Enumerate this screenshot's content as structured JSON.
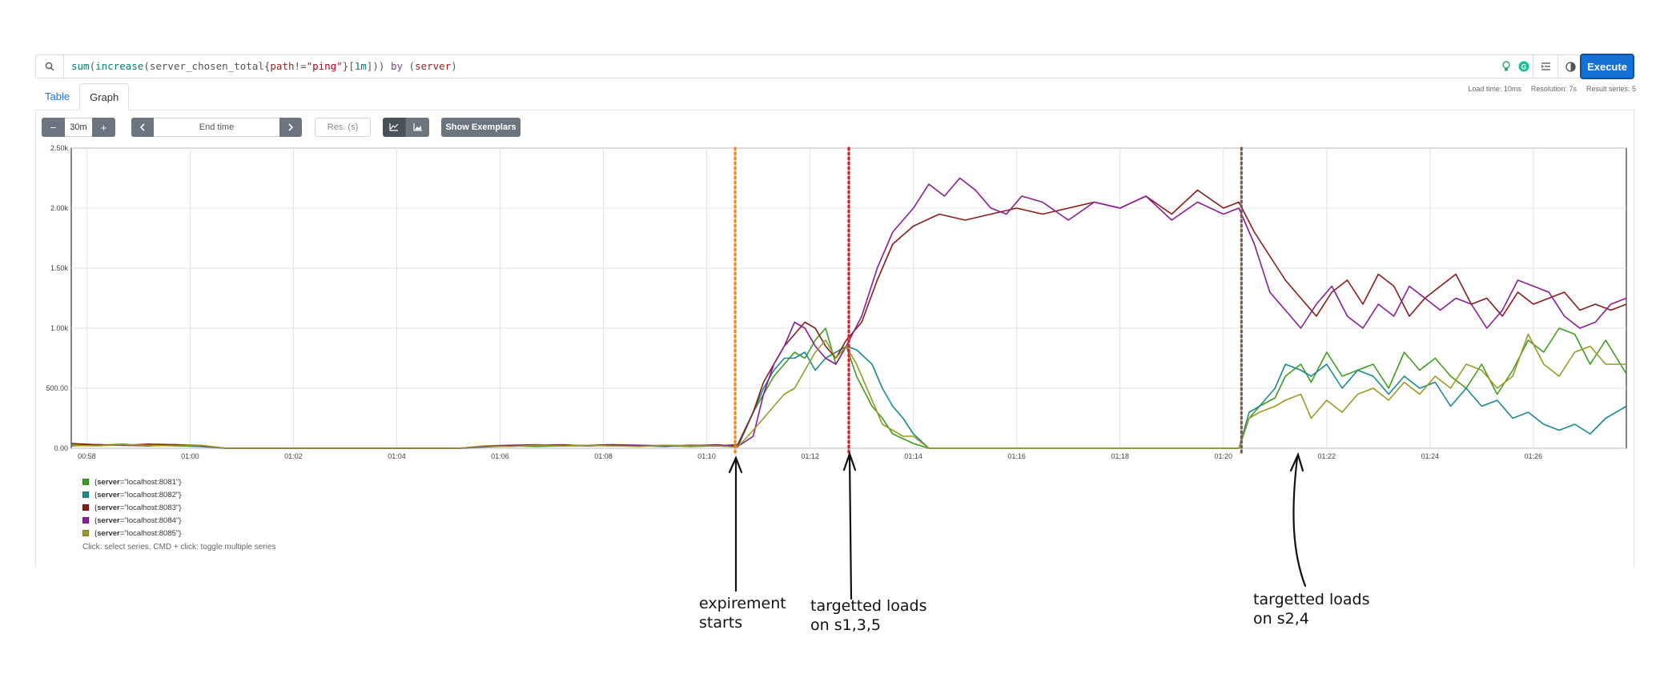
{
  "query": {
    "parts": [
      {
        "t": "sum",
        "c": "q-fn"
      },
      {
        "t": "(",
        "c": ""
      },
      {
        "t": "increase",
        "c": "q-fn"
      },
      {
        "t": "(",
        "c": ""
      },
      {
        "t": "server_chosen_total",
        "c": ""
      },
      {
        "t": "{",
        "c": ""
      },
      {
        "t": "path",
        "c": "q-label"
      },
      {
        "t": "!=",
        "c": ""
      },
      {
        "t": "\"ping\"",
        "c": "q-str"
      },
      {
        "t": "}[",
        "c": ""
      },
      {
        "t": "1m",
        "c": "q-num"
      },
      {
        "t": "])) ",
        "c": ""
      },
      {
        "t": "by",
        "c": "q-kw"
      },
      {
        "t": " (",
        "c": ""
      },
      {
        "t": "server",
        "c": "q-label"
      },
      {
        "t": ")",
        "c": ""
      }
    ],
    "execute_label": "Execute"
  },
  "stats": {
    "load_time": "Load time: 10ms",
    "resolution": "Resolution: 7s",
    "result_series": "Result series: 5"
  },
  "tabs": {
    "table": "Table",
    "graph": "Graph"
  },
  "controls": {
    "minus": "−",
    "range": "30m",
    "plus": "+",
    "end_time_placeholder": "End time",
    "res_placeholder": "Res. (s)",
    "exemplars": "Show Exemplars"
  },
  "legend": {
    "items": [
      {
        "name": "server",
        "value": "\"localhost:8081\"",
        "color": "#3e9e1e"
      },
      {
        "name": "server",
        "value": "\"localhost:8082\"",
        "color": "#1b8a8e"
      },
      {
        "name": "server",
        "value": "\"localhost:8083\"",
        "color": "#8b1a1a"
      },
      {
        "name": "server",
        "value": "\"localhost:8084\"",
        "color": "#8a1c9a"
      },
      {
        "name": "server",
        "value": "\"localhost:8085\"",
        "color": "#9a9a25"
      }
    ],
    "hint": "Click: select series, CMD + click: toggle multiple series"
  },
  "annotations": {
    "start": "expirement\nstarts",
    "s135": "targetted loads\non s1,3,5",
    "s24": "targetted loads\non s2,4"
  },
  "chart_data": {
    "type": "line",
    "x_ticks": [
      "00:58",
      "01:00",
      "01:02",
      "01:04",
      "01:06",
      "01:08",
      "01:10",
      "01:12",
      "01:14",
      "01:16",
      "01:18",
      "01:20",
      "01:22",
      "01:24",
      "01:26"
    ],
    "y_ticks": [
      "0.00",
      "500.00",
      "1.00k",
      "1.50k",
      "2.00k",
      "2.50k"
    ],
    "xlim": [
      57.7,
      87.8
    ],
    "ylim": [
      0,
      2500
    ],
    "markers": [
      {
        "x": 70.55,
        "color": "#f7870f"
      },
      {
        "x": 72.75,
        "color": "#dd1c2a"
      },
      {
        "x": 80.35,
        "color": "#7b5c55"
      }
    ],
    "series": [
      {
        "name": "{server=\"localhost:8081\"}",
        "color": "#3e9e1e",
        "x": [
          57.7,
          58.2,
          58.7,
          59.2,
          59.7,
          60.2,
          60.7,
          65.2,
          65.7,
          66.2,
          66.7,
          67.2,
          67.7,
          68.2,
          68.7,
          69.2,
          69.7,
          70.2,
          70.6,
          70.9,
          71.1,
          71.3,
          71.5,
          71.7,
          71.9,
          72.1,
          72.3,
          72.5,
          72.7,
          72.9,
          73.2,
          73.4,
          73.6,
          73.8,
          74.0,
          74.3,
          80.3,
          80.5,
          80.7,
          81.0,
          81.2,
          81.5,
          81.7,
          82.0,
          82.3,
          82.6,
          82.9,
          83.2,
          83.5,
          83.8,
          84.1,
          84.4,
          84.7,
          85.0,
          85.3,
          85.6,
          85.9,
          86.2,
          86.5,
          86.8,
          87.1,
          87.4,
          87.8
        ],
        "y": [
          30,
          25,
          35,
          20,
          30,
          25,
          0,
          0,
          10,
          20,
          15,
          20,
          25,
          20,
          25,
          20,
          15,
          20,
          10,
          300,
          450,
          600,
          700,
          800,
          750,
          900,
          1000,
          700,
          850,
          600,
          350,
          250,
          120,
          80,
          40,
          0,
          0,
          250,
          350,
          420,
          600,
          700,
          550,
          800,
          600,
          650,
          700,
          500,
          800,
          650,
          750,
          600,
          500,
          700,
          450,
          650,
          900,
          800,
          1000,
          950,
          700,
          900,
          620
        ]
      },
      {
        "name": "{server=\"localhost:8082\"}",
        "color": "#1b8a8e",
        "x": [
          57.7,
          58.2,
          58.7,
          59.2,
          59.7,
          60.2,
          60.7,
          65.2,
          65.7,
          66.2,
          66.7,
          67.2,
          67.7,
          68.2,
          68.7,
          69.2,
          69.7,
          70.2,
          70.6,
          70.9,
          71.1,
          71.3,
          71.5,
          71.7,
          71.9,
          72.1,
          72.3,
          72.5,
          72.7,
          72.9,
          73.2,
          73.4,
          73.6,
          73.8,
          74.0,
          74.3,
          80.3,
          80.5,
          80.7,
          81.0,
          81.2,
          81.5,
          81.7,
          82.0,
          82.3,
          82.6,
          82.9,
          83.2,
          83.5,
          83.8,
          84.1,
          84.4,
          84.7,
          85.0,
          85.3,
          85.6,
          85.9,
          86.2,
          86.5,
          86.8,
          87.1,
          87.4,
          87.8
        ],
        "y": [
          20,
          30,
          25,
          30,
          20,
          15,
          0,
          0,
          15,
          20,
          25,
          20,
          20,
          25,
          20,
          15,
          25,
          20,
          10,
          300,
          500,
          650,
          750,
          750,
          800,
          650,
          750,
          800,
          850,
          820,
          700,
          500,
          350,
          250,
          120,
          0,
          0,
          300,
          350,
          500,
          700,
          650,
          600,
          700,
          500,
          650,
          600,
          450,
          600,
          500,
          550,
          350,
          500,
          350,
          400,
          250,
          300,
          200,
          150,
          200,
          120,
          250,
          350
        ]
      },
      {
        "name": "{server=\"localhost:8083\"}",
        "color": "#8b1a1a",
        "x": [
          57.7,
          58.2,
          58.7,
          59.2,
          59.7,
          60.2,
          60.7,
          65.2,
          65.7,
          66.2,
          66.7,
          67.2,
          67.7,
          68.2,
          68.7,
          69.2,
          69.7,
          70.2,
          70.6,
          70.9,
          71.1,
          71.3,
          71.5,
          71.7,
          71.9,
          72.1,
          72.3,
          72.5,
          72.7,
          73.0,
          73.3,
          73.6,
          74.0,
          74.5,
          75.0,
          75.5,
          76.0,
          76.5,
          77.0,
          77.5,
          78.0,
          78.5,
          79.0,
          79.5,
          80.0,
          80.3,
          80.6,
          80.9,
          81.2,
          81.5,
          81.8,
          82.1,
          82.4,
          82.7,
          83.0,
          83.3,
          83.6,
          83.9,
          84.2,
          84.5,
          84.8,
          85.1,
          85.4,
          85.7,
          86.0,
          86.3,
          86.6,
          86.9,
          87.2,
          87.5,
          87.8
        ],
        "y": [
          40,
          30,
          25,
          35,
          30,
          20,
          0,
          0,
          20,
          25,
          30,
          20,
          25,
          30,
          25,
          20,
          25,
          20,
          30,
          300,
          550,
          700,
          850,
          950,
          1050,
          1000,
          850,
          750,
          900,
          1050,
          1400,
          1700,
          1850,
          1950,
          1900,
          1950,
          2000,
          1950,
          2000,
          2050,
          2000,
          2100,
          1950,
          2150,
          2000,
          2050,
          1800,
          1600,
          1400,
          1250,
          1100,
          1300,
          1400,
          1200,
          1450,
          1350,
          1100,
          1250,
          1350,
          1450,
          1200,
          1250,
          1100,
          1300,
          1200,
          1250,
          1300,
          1150,
          1200,
          1150,
          1200
        ]
      },
      {
        "name": "{server=\"localhost:8084\"}",
        "color": "#8a1c9a",
        "x": [
          57.7,
          58.2,
          58.7,
          59.2,
          59.7,
          60.2,
          60.7,
          65.2,
          65.7,
          66.2,
          66.7,
          67.2,
          67.7,
          68.2,
          68.7,
          69.2,
          69.7,
          70.2,
          70.6,
          70.9,
          71.1,
          71.3,
          71.5,
          71.7,
          71.9,
          72.1,
          72.3,
          72.5,
          72.7,
          73.0,
          73.3,
          73.6,
          74.0,
          74.3,
          74.6,
          74.9,
          75.2,
          75.5,
          75.8,
          76.1,
          76.5,
          77.0,
          77.5,
          78.0,
          78.5,
          79.0,
          79.5,
          80.0,
          80.3,
          80.6,
          80.9,
          81.2,
          81.5,
          81.8,
          82.1,
          82.4,
          82.7,
          83.0,
          83.3,
          83.6,
          83.9,
          84.2,
          84.5,
          84.8,
          85.1,
          85.4,
          85.7,
          86.0,
          86.3,
          86.6,
          86.9,
          87.2,
          87.5,
          87.8
        ],
        "y": [
          20,
          30,
          25,
          20,
          30,
          20,
          0,
          0,
          15,
          20,
          25,
          30,
          20,
          25,
          20,
          25,
          20,
          30,
          15,
          100,
          450,
          700,
          850,
          1050,
          1000,
          850,
          750,
          700,
          850,
          1100,
          1500,
          1800,
          2000,
          2200,
          2100,
          2250,
          2150,
          2000,
          1950,
          2100,
          2050,
          1900,
          2050,
          2000,
          2100,
          1900,
          2050,
          1950,
          2000,
          1700,
          1300,
          1150,
          1000,
          1200,
          1350,
          1100,
          1000,
          1200,
          1100,
          1350,
          1250,
          1150,
          1250,
          1200,
          1000,
          1150,
          1400,
          1350,
          1300,
          1100,
          1000,
          1050,
          1200,
          1250
        ]
      },
      {
        "name": "{server=\"localhost:8085\"}",
        "color": "#9a9a25",
        "x": [
          57.7,
          58.2,
          58.7,
          59.2,
          59.7,
          60.2,
          60.7,
          65.2,
          65.7,
          66.2,
          66.7,
          67.2,
          67.7,
          68.2,
          68.7,
          69.2,
          69.7,
          70.2,
          70.6,
          70.9,
          71.1,
          71.3,
          71.5,
          71.7,
          71.9,
          72.1,
          72.3,
          72.5,
          72.7,
          72.9,
          73.2,
          73.4,
          73.6,
          73.8,
          74.0,
          74.3,
          80.3,
          80.5,
          80.7,
          81.0,
          81.2,
          81.5,
          81.7,
          82.0,
          82.3,
          82.6,
          82.9,
          83.2,
          83.5,
          83.8,
          84.1,
          84.4,
          84.7,
          85.0,
          85.3,
          85.6,
          85.9,
          86.2,
          86.5,
          86.8,
          87.1,
          87.4,
          87.8
        ],
        "y": [
          25,
          20,
          30,
          25,
          20,
          25,
          0,
          0,
          20,
          15,
          25,
          20,
          25,
          20,
          15,
          25,
          20,
          20,
          10,
          150,
          250,
          350,
          450,
          500,
          650,
          800,
          900,
          750,
          850,
          700,
          400,
          200,
          150,
          100,
          100,
          0,
          0,
          250,
          300,
          350,
          400,
          450,
          250,
          400,
          300,
          450,
          500,
          400,
          550,
          450,
          600,
          500,
          700,
          650,
          500,
          600,
          950,
          700,
          600,
          800,
          850,
          700,
          700
        ]
      }
    ]
  }
}
